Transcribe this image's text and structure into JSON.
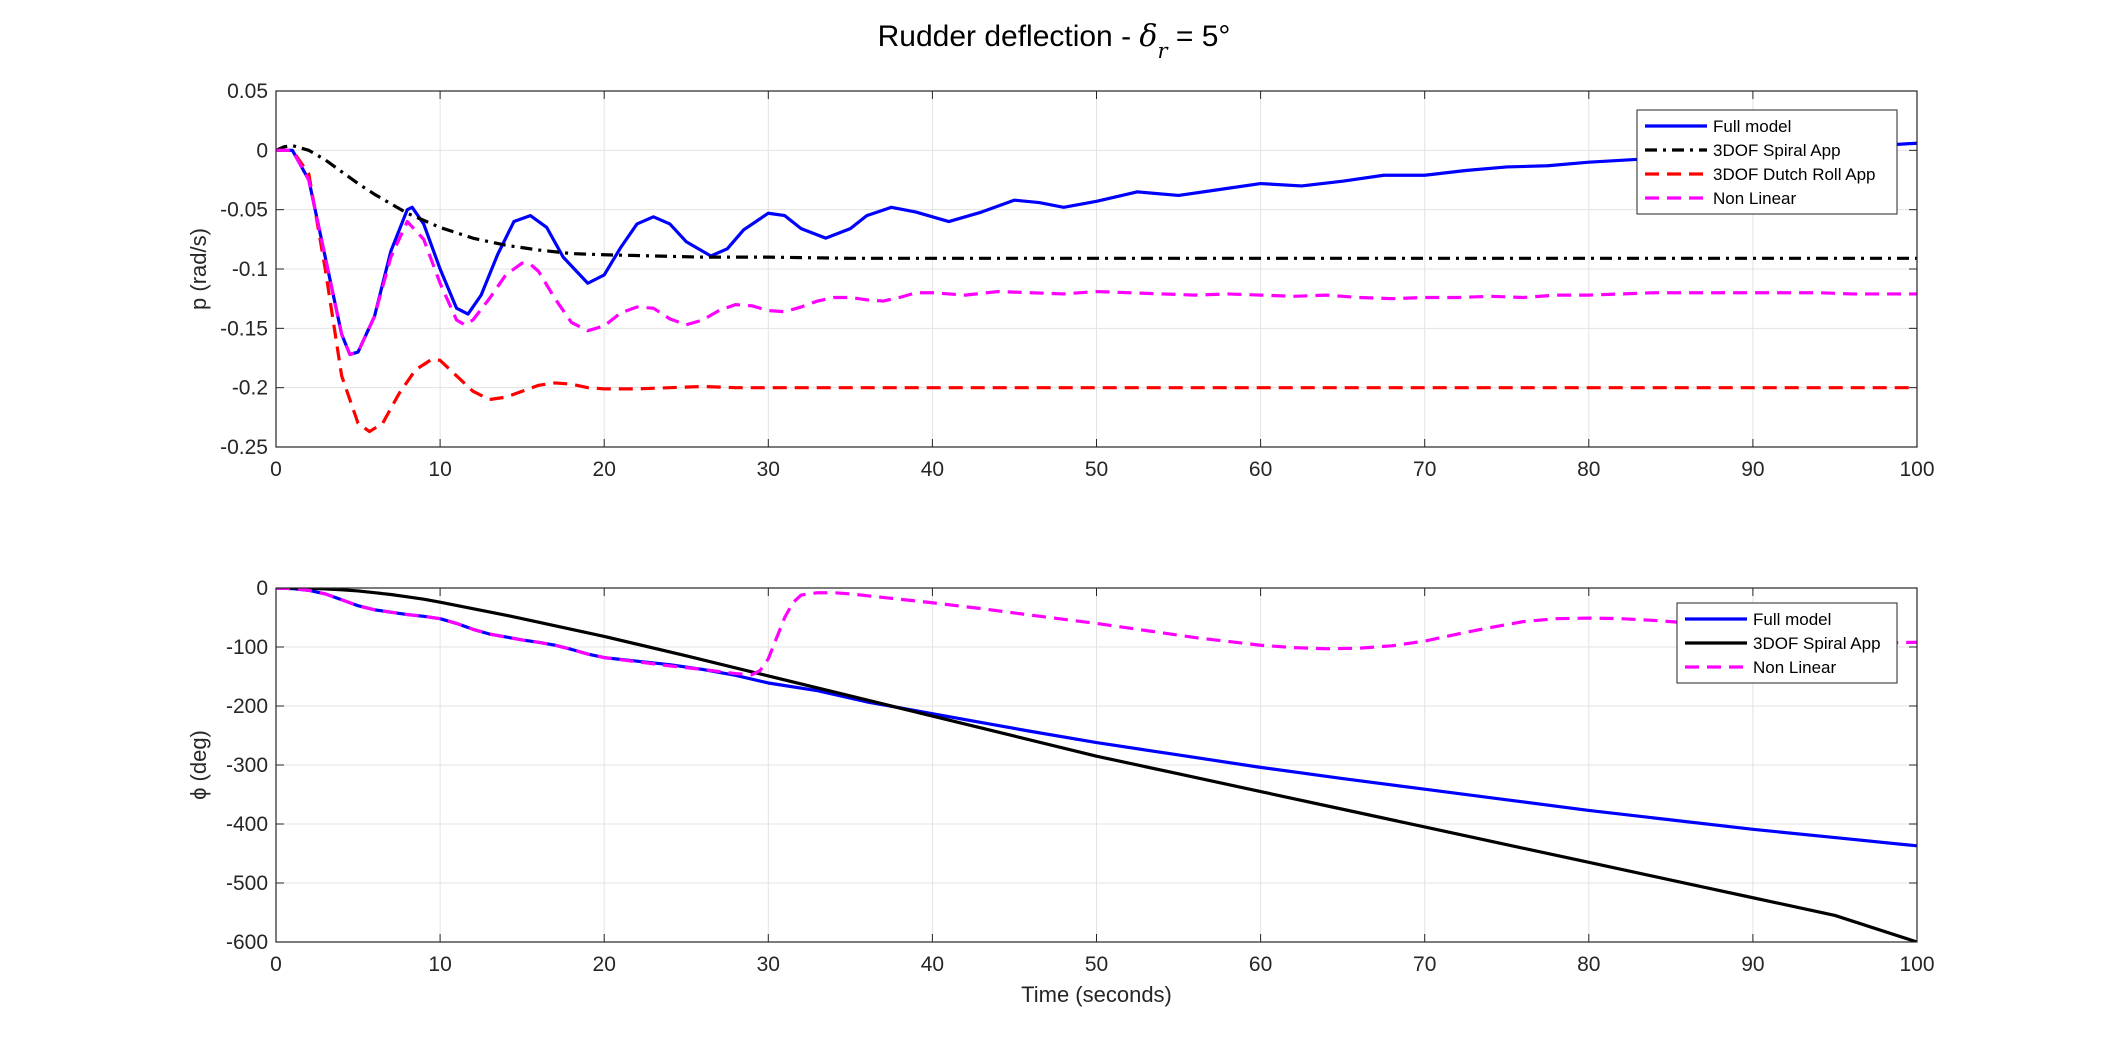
{
  "figure": {
    "title_prefix": "Rudder deflection - ",
    "title_symbol": "δ",
    "title_subscript": "r",
    "title_suffix": " = 5°"
  },
  "chart_data": [
    {
      "type": "line",
      "xlabel": "",
      "ylabel": "p (rad/s)",
      "xlim": [
        0,
        100
      ],
      "ylim": [
        -0.25,
        0.05
      ],
      "xticks": [
        "0",
        "10",
        "20",
        "30",
        "40",
        "50",
        "60",
        "70",
        "80",
        "90",
        "100"
      ],
      "yticks": [
        "0.05",
        "0",
        "-0.05",
        "-0.1",
        "-0.15",
        "-0.2",
        "-0.25"
      ],
      "grid": true,
      "legend_position": "top-right",
      "series": [
        {
          "name": "Full model",
          "color": "#0000ff",
          "style": "solid",
          "x": [
            0,
            1,
            2,
            3,
            4,
            4.5,
            5,
            6,
            7,
            8,
            8.3,
            9,
            10,
            11,
            11.7,
            12.5,
            13.5,
            14.5,
            15.5,
            16.5,
            17.5,
            19,
            20,
            21,
            22,
            23,
            24,
            25,
            26.5,
            27.5,
            28.5,
            30,
            31,
            32,
            33.5,
            35,
            36,
            37.5,
            39,
            41,
            43,
            45,
            46.5,
            48,
            50,
            52.5,
            55,
            57.5,
            60,
            62.5,
            65,
            67.5,
            70,
            72.5,
            75,
            77.5,
            80,
            82.5,
            85,
            87.5,
            90,
            92.5,
            95,
            97.5,
            100
          ],
          "y": [
            0,
            0,
            -0.025,
            -0.09,
            -0.155,
            -0.172,
            -0.17,
            -0.14,
            -0.085,
            -0.05,
            -0.048,
            -0.062,
            -0.1,
            -0.133,
            -0.138,
            -0.122,
            -0.088,
            -0.06,
            -0.055,
            -0.065,
            -0.09,
            -0.112,
            -0.105,
            -0.082,
            -0.062,
            -0.056,
            -0.062,
            -0.077,
            -0.089,
            -0.083,
            -0.067,
            -0.053,
            -0.055,
            -0.066,
            -0.074,
            -0.066,
            -0.055,
            -0.048,
            -0.052,
            -0.06,
            -0.052,
            -0.042,
            -0.044,
            -0.048,
            -0.043,
            -0.035,
            -0.038,
            -0.033,
            -0.028,
            -0.03,
            -0.026,
            -0.021,
            -0.021,
            -0.017,
            -0.014,
            -0.013,
            -0.01,
            -0.008,
            -0.006,
            -0.004,
            -0.002,
            0.0,
            0.002,
            0.004,
            0.006
          ]
        },
        {
          "name": "3DOF Spiral App",
          "color": "#000000",
          "style": "dashdot",
          "x": [
            0,
            0.5,
            1,
            2,
            3,
            4,
            5,
            6,
            8,
            10,
            12,
            14,
            16,
            18,
            20,
            23,
            26,
            30,
            35,
            40,
            50,
            60,
            70,
            80,
            90,
            100
          ],
          "y": [
            0,
            0.003,
            0.004,
            0.0,
            -0.008,
            -0.018,
            -0.028,
            -0.037,
            -0.053,
            -0.065,
            -0.074,
            -0.08,
            -0.084,
            -0.087,
            -0.088,
            -0.089,
            -0.09,
            -0.09,
            -0.091,
            -0.091,
            -0.091,
            -0.091,
            -0.091,
            -0.091,
            -0.091,
            -0.091
          ]
        },
        {
          "name": "3DOF Dutch Roll App",
          "color": "#ff0000",
          "style": "dashed",
          "x": [
            0,
            1,
            2,
            3,
            4,
            5,
            5.7,
            6.5,
            7.5,
            8.5,
            9.5,
            10,
            11,
            12,
            13,
            14,
            15,
            16,
            17,
            18,
            19,
            20,
            22,
            24,
            26,
            28,
            30,
            35,
            40,
            50,
            60,
            70,
            80,
            90,
            100
          ],
          "y": [
            0,
            0,
            -0.02,
            -0.1,
            -0.19,
            -0.23,
            -0.237,
            -0.23,
            -0.205,
            -0.185,
            -0.176,
            -0.177,
            -0.19,
            -0.203,
            -0.21,
            -0.208,
            -0.203,
            -0.198,
            -0.196,
            -0.197,
            -0.2,
            -0.201,
            -0.201,
            -0.2,
            -0.199,
            -0.2,
            -0.2,
            -0.2,
            -0.2,
            -0.2,
            -0.2,
            -0.2,
            -0.2,
            -0.2,
            -0.2
          ]
        },
        {
          "name": "Non Linear",
          "color": "#ff00ff",
          "style": "dashed",
          "x": [
            0,
            1,
            2,
            3,
            4,
            4.5,
            5,
            6,
            7,
            8,
            9,
            10,
            11,
            11.5,
            12,
            13,
            14,
            15,
            15.5,
            16,
            17,
            18,
            19,
            20,
            21,
            22,
            23,
            24,
            25,
            26,
            27,
            28,
            29,
            30,
            31,
            32,
            33,
            34,
            35,
            36,
            37,
            38,
            39,
            40,
            42,
            44,
            46,
            48,
            50,
            52,
            54,
            56,
            58,
            60,
            62,
            64,
            66,
            68,
            70,
            72,
            74,
            76,
            78,
            80,
            82,
            84,
            86,
            88,
            90,
            92,
            94,
            96,
            98,
            100
          ],
          "y": [
            0,
            0,
            -0.025,
            -0.09,
            -0.155,
            -0.172,
            -0.17,
            -0.14,
            -0.09,
            -0.06,
            -0.075,
            -0.112,
            -0.143,
            -0.147,
            -0.143,
            -0.125,
            -0.105,
            -0.095,
            -0.096,
            -0.102,
            -0.125,
            -0.145,
            -0.152,
            -0.148,
            -0.137,
            -0.132,
            -0.133,
            -0.142,
            -0.147,
            -0.143,
            -0.135,
            -0.13,
            -0.131,
            -0.135,
            -0.136,
            -0.132,
            -0.127,
            -0.124,
            -0.124,
            -0.126,
            -0.127,
            -0.124,
            -0.12,
            -0.12,
            -0.122,
            -0.119,
            -0.12,
            -0.121,
            -0.119,
            -0.12,
            -0.121,
            -0.122,
            -0.121,
            -0.122,
            -0.123,
            -0.122,
            -0.124,
            -0.125,
            -0.124,
            -0.124,
            -0.123,
            -0.124,
            -0.122,
            -0.122,
            -0.121,
            -0.12,
            -0.12,
            -0.12,
            -0.12,
            -0.12,
            -0.12,
            -0.121,
            -0.121,
            -0.121
          ]
        }
      ]
    },
    {
      "type": "line",
      "xlabel": "Time (seconds)",
      "ylabel": "ϕ (deg)",
      "xlim": [
        0,
        100
      ],
      "ylim": [
        -600,
        0
      ],
      "xticks": [
        "0",
        "10",
        "20",
        "30",
        "40",
        "50",
        "60",
        "70",
        "80",
        "90",
        "100"
      ],
      "yticks": [
        "0",
        "-100",
        "-200",
        "-300",
        "-400",
        "-500",
        "-600"
      ],
      "grid": true,
      "legend_position": "top-right",
      "series": [
        {
          "name": "Full model",
          "color": "#0000ff",
          "style": "solid",
          "x": [
            0,
            1,
            2,
            3,
            4,
            5,
            6,
            7,
            8,
            9,
            10,
            11,
            12,
            13,
            14,
            15,
            16,
            17,
            18,
            19,
            20,
            22,
            24,
            26,
            28,
            30,
            33,
            36,
            40,
            43,
            46,
            50,
            55,
            60,
            65,
            70,
            75,
            80,
            85,
            90,
            95,
            100
          ],
          "y": [
            0,
            -1,
            -4,
            -10,
            -20,
            -30,
            -37,
            -41,
            -45,
            -48,
            -52,
            -60,
            -70,
            -78,
            -83,
            -88,
            -92,
            -97,
            -104,
            -112,
            -118,
            -124,
            -130,
            -138,
            -148,
            -161,
            -174,
            -193,
            -213,
            -228,
            -243,
            -262,
            -283,
            -304,
            -323,
            -341,
            -359,
            -377,
            -393,
            -409,
            -423,
            -437
          ]
        },
        {
          "name": "3DOF Spiral App",
          "color": "#000000",
          "style": "solid",
          "x": [
            0,
            1,
            2,
            3,
            4,
            5,
            6,
            7,
            8,
            9,
            10,
            12,
            14,
            16,
            18,
            20,
            25,
            30,
            35,
            40,
            45,
            50,
            55,
            60,
            65,
            70,
            75,
            80,
            85,
            90,
            95,
            100
          ],
          "y": [
            0,
            0,
            -0.5,
            -1.5,
            -3,
            -5,
            -8,
            -11,
            -15,
            -19,
            -24,
            -35,
            -46,
            -58,
            -70,
            -82,
            -115,
            -149,
            -183,
            -217,
            -251,
            -285,
            -315,
            -345,
            -375,
            -405,
            -435,
            -465,
            -495,
            -525,
            -555,
            -600
          ]
        },
        {
          "name": "Non Linear",
          "color": "#ff00ff",
          "style": "dashed",
          "x": [
            0,
            1,
            2,
            3,
            4,
            5,
            6,
            7,
            8,
            9,
            10,
            11,
            12,
            13,
            14,
            15,
            16,
            17,
            18,
            19,
            20,
            22,
            24,
            26,
            28,
            29,
            29.5,
            30,
            30.5,
            31,
            31.5,
            32,
            33,
            34,
            35,
            37,
            40,
            43,
            46,
            50,
            53,
            56,
            60,
            62,
            64,
            66,
            68,
            70,
            72,
            74,
            76,
            78,
            80,
            82,
            84,
            86,
            88,
            90,
            92,
            94,
            96,
            98,
            100
          ],
          "y": [
            0,
            -1,
            -4,
            -10,
            -20,
            -30,
            -37,
            -41,
            -45,
            -48,
            -52,
            -60,
            -70,
            -78,
            -83,
            -88,
            -92,
            -97,
            -104,
            -112,
            -118,
            -125,
            -132,
            -138,
            -145,
            -147,
            -140,
            -120,
            -85,
            -50,
            -25,
            -12,
            -8,
            -8,
            -10,
            -16,
            -25,
            -35,
            -46,
            -60,
            -72,
            -84,
            -97,
            -101,
            -103,
            -102,
            -98,
            -90,
            -78,
            -67,
            -57,
            -52,
            -51,
            -52,
            -55,
            -59,
            -66,
            -74,
            -82,
            -88,
            -92,
            -93,
            -92
          ]
        }
      ]
    }
  ]
}
